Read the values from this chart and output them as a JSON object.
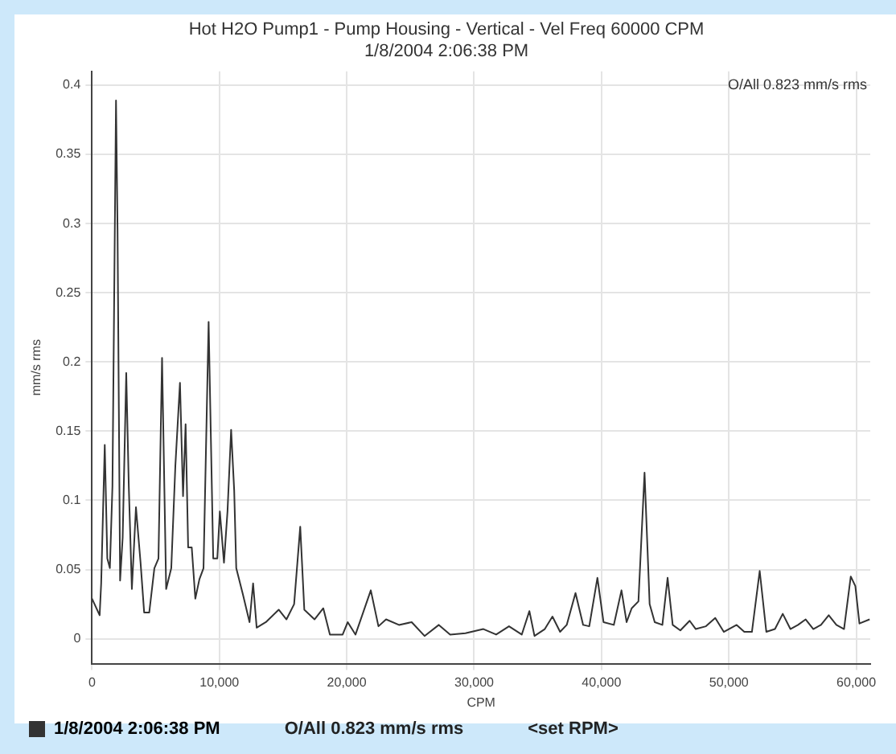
{
  "chart_data": {
    "type": "line",
    "title": "Hot H2O Pump1 - Pump Housing - Vertical - Vel Freq 60000 CPM",
    "subtitle": "1/8/2004 2:06:38 PM",
    "xlabel": "CPM",
    "ylabel": "mm/s rms",
    "annotations": [
      "O/All 0.823 mm/s rms",
      "O/All 0.823 mm/s rms",
      "<set RPM>"
    ],
    "xlim": [
      0,
      61100
    ],
    "ylim": [
      -0.018,
      0.41
    ],
    "xticks": [
      0,
      {
        "value": 10000,
        "label": "10,000"
      },
      {
        "value": 20000,
        "label": "20,000"
      },
      {
        "value": 30000,
        "label": "30,000"
      },
      {
        "value": 40000,
        "label": "40,000"
      },
      {
        "value": 50000,
        "label": "50,000"
      },
      {
        "value": 60000,
        "label": "60,000"
      }
    ],
    "yticks": [
      0,
      0.05,
      0.1,
      0.15,
      0.2,
      0.25,
      0.3,
      0.35,
      0.4
    ],
    "grid": true,
    "legend": "bottom left",
    "marker": "none",
    "line_style": "solid",
    "series": [
      {
        "name": "1/8/2004 2:06:38 PM",
        "color": "#333333",
        "x": [
          0,
          603,
          723,
          1004,
          1205,
          1406,
          1607,
          1888,
          2008,
          2209,
          2410,
          2691,
          2892,
          3133,
          3454,
          3815,
          4097,
          4498,
          4900,
          5221,
          5502,
          5824,
          6226,
          6547,
          6909,
          7150,
          7351,
          7552,
          7833,
          8114,
          8435,
          8757,
          9158,
          9520,
          9840,
          10040,
          10363,
          10640,
          10925,
          11166,
          11327,
          11850,
          12370,
          12650,
          12930,
          13653,
          14660,
          15270,
          15870,
          16350,
          16670,
          17470,
          18160,
          18680,
          19680,
          20080,
          20690,
          21890,
          22490,
          23090,
          24100,
          25100,
          26110,
          27230,
          28120,
          29320,
          30730,
          31730,
          32740,
          33740,
          34340,
          34740,
          35550,
          36150,
          36750,
          37270,
          37960,
          38560,
          39040,
          39680,
          40160,
          40970,
          41570,
          41970,
          42370,
          42900,
          43380,
          43780,
          44180,
          44780,
          45190,
          45590,
          46190,
          46920,
          47400,
          48200,
          48930,
          49600,
          50610,
          51210,
          51810,
          52420,
          52940,
          53620,
          54230,
          54830,
          55430,
          56030,
          56630,
          57230,
          57840,
          58440,
          59040,
          59570,
          59930,
          60250,
          61050
        ],
        "values": [
          0.029,
          0.017,
          0.04,
          0.14,
          0.058,
          0.051,
          0.11,
          0.389,
          0.296,
          0.042,
          0.073,
          0.192,
          0.11,
          0.036,
          0.095,
          0.055,
          0.019,
          0.019,
          0.051,
          0.058,
          0.203,
          0.036,
          0.051,
          0.125,
          0.185,
          0.103,
          0.155,
          0.066,
          0.066,
          0.029,
          0.043,
          0.051,
          0.229,
          0.058,
          0.058,
          0.092,
          0.055,
          0.092,
          0.151,
          0.107,
          0.051,
          0.032,
          0.012,
          0.04,
          0.008,
          0.012,
          0.021,
          0.014,
          0.025,
          0.081,
          0.021,
          0.014,
          0.022,
          0.003,
          0.003,
          0.012,
          0.003,
          0.035,
          0.009,
          0.014,
          0.01,
          0.012,
          0.002,
          0.01,
          0.003,
          0.004,
          0.007,
          0.003,
          0.009,
          0.003,
          0.02,
          0.002,
          0.007,
          0.016,
          0.005,
          0.01,
          0.033,
          0.01,
          0.009,
          0.044,
          0.012,
          0.01,
          0.035,
          0.012,
          0.022,
          0.027,
          0.12,
          0.025,
          0.012,
          0.01,
          0.044,
          0.01,
          0.006,
          0.013,
          0.007,
          0.009,
          0.015,
          0.005,
          0.01,
          0.005,
          0.005,
          0.049,
          0.005,
          0.007,
          0.018,
          0.007,
          0.01,
          0.014,
          0.007,
          0.01,
          0.017,
          0.01,
          0.007,
          0.045,
          0.038,
          0.011,
          0.014
        ]
      }
    ]
  }
}
